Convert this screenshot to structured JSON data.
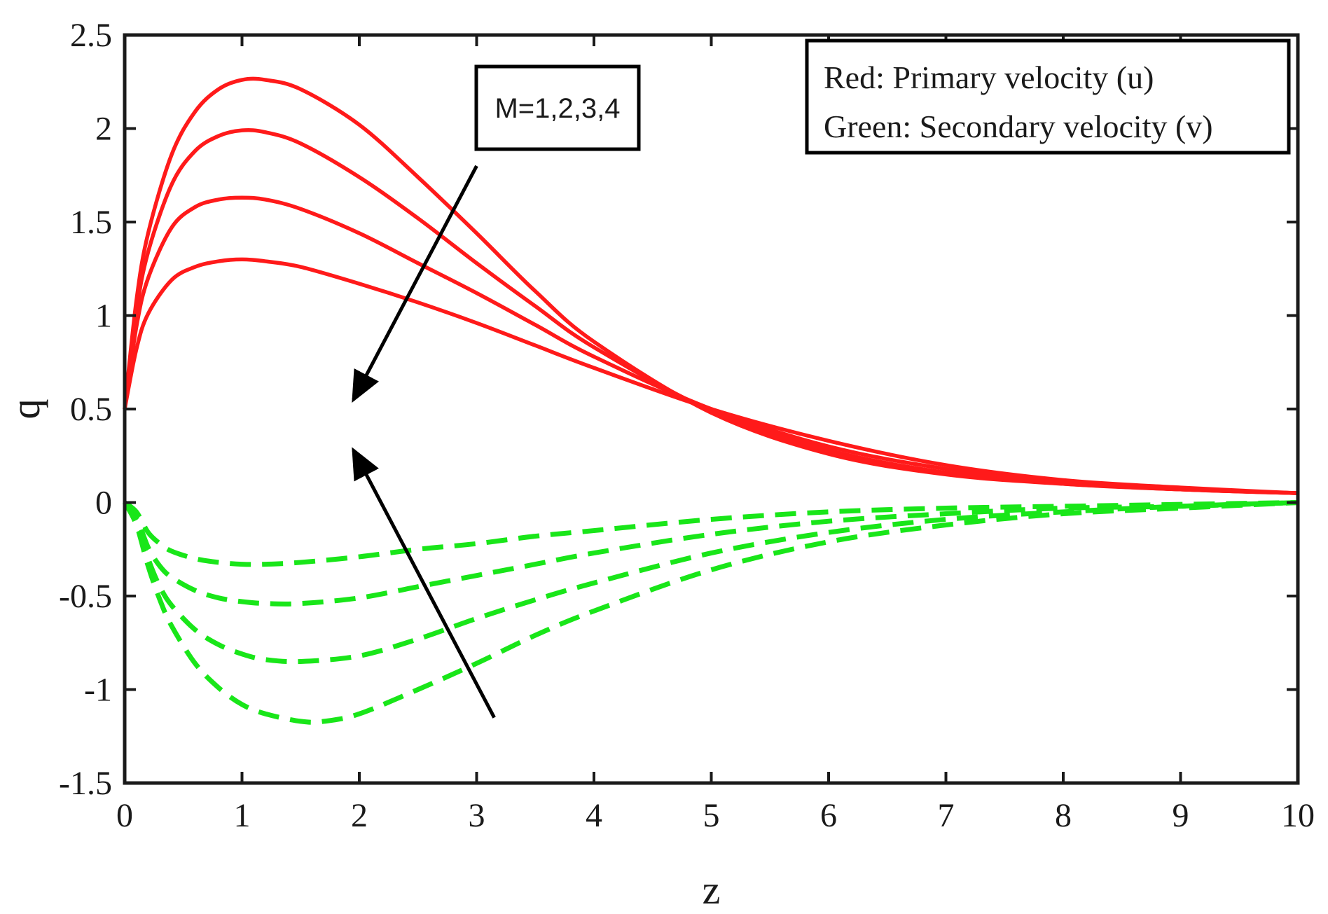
{
  "chart_data": {
    "type": "line",
    "title": "",
    "xlabel": "z",
    "ylabel": "q",
    "xlim": [
      0,
      10
    ],
    "ylim": [
      -1.5,
      2.5
    ],
    "xticks": [
      0,
      1,
      2,
      3,
      4,
      5,
      6,
      7,
      8,
      9,
      10
    ],
    "yticks": [
      -1.5,
      -1,
      -0.5,
      0,
      0.5,
      1,
      1.5,
      2,
      2.5
    ],
    "ytick_labels": [
      "-1.5",
      "-1",
      "-0.5",
      "0",
      "0.5",
      "1",
      "1.5",
      "2",
      "2.5"
    ],
    "grid": false,
    "legend_position": "top-right",
    "legend": [
      "Red: Primary velocity (u)",
      "Green: Secondary velocity (v)"
    ],
    "annotation": {
      "text": "M=1,2,3,4",
      "arrow_primary": {
        "from": [
          3.0,
          1.8
        ],
        "to": [
          1.95,
          0.55
        ]
      },
      "arrow_secondary": {
        "from": [
          3.15,
          -1.15
        ],
        "to": [
          1.95,
          0.28
        ]
      }
    },
    "series": [
      {
        "name": "u, M=1",
        "style": "solid",
        "color": "#ff1a1a",
        "x": [
          0,
          0.1,
          0.2,
          0.4,
          0.6,
          0.8,
          1.0,
          1.2,
          1.5,
          2,
          2.5,
          3,
          3.5,
          4,
          5,
          6,
          7,
          8,
          9,
          10
        ],
        "y": [
          0.5,
          1.08,
          1.44,
          1.86,
          2.09,
          2.21,
          2.26,
          2.26,
          2.21,
          2.02,
          1.74,
          1.44,
          1.13,
          0.86,
          0.48,
          0.26,
          0.15,
          0.1,
          0.07,
          0.05
        ]
      },
      {
        "name": "u, M=2",
        "style": "solid",
        "color": "#ff1a1a",
        "x": [
          0,
          0.1,
          0.2,
          0.4,
          0.6,
          0.8,
          1.0,
          1.2,
          1.5,
          2,
          2.5,
          3,
          3.5,
          4,
          5,
          6,
          7,
          8,
          9,
          10
        ],
        "y": [
          0.5,
          1.02,
          1.34,
          1.7,
          1.88,
          1.96,
          1.99,
          1.98,
          1.92,
          1.74,
          1.52,
          1.28,
          1.05,
          0.83,
          0.49,
          0.28,
          0.16,
          0.1,
          0.07,
          0.05
        ]
      },
      {
        "name": "u, M=3",
        "style": "solid",
        "color": "#ff1a1a",
        "x": [
          0,
          0.1,
          0.2,
          0.4,
          0.6,
          0.8,
          1.0,
          1.2,
          1.5,
          2,
          2.5,
          3,
          3.5,
          4,
          5,
          6,
          7,
          8,
          9,
          10
        ],
        "y": [
          0.5,
          0.94,
          1.2,
          1.47,
          1.58,
          1.62,
          1.63,
          1.62,
          1.57,
          1.44,
          1.28,
          1.12,
          0.95,
          0.78,
          0.5,
          0.3,
          0.18,
          0.11,
          0.07,
          0.05
        ]
      },
      {
        "name": "u, M=4",
        "style": "solid",
        "color": "#ff1a1a",
        "x": [
          0,
          0.1,
          0.2,
          0.4,
          0.6,
          0.8,
          1.0,
          1.2,
          1.5,
          2,
          2.5,
          3,
          3.5,
          4,
          5,
          6,
          7,
          8,
          9,
          10
        ],
        "y": [
          0.5,
          0.82,
          1.01,
          1.19,
          1.26,
          1.29,
          1.3,
          1.29,
          1.26,
          1.17,
          1.07,
          0.96,
          0.84,
          0.72,
          0.5,
          0.33,
          0.2,
          0.12,
          0.08,
          0.05
        ]
      },
      {
        "name": "v, M=1",
        "style": "dashed",
        "color": "#19e619",
        "x": [
          0,
          0.1,
          0.2,
          0.3,
          0.4,
          0.6,
          0.8,
          1.0,
          1.2,
          1.5,
          2,
          2.5,
          3,
          3.5,
          4,
          5,
          6,
          7,
          8,
          9,
          10
        ],
        "y": [
          0,
          -0.05,
          -0.16,
          -0.22,
          -0.26,
          -0.3,
          -0.32,
          -0.33,
          -0.33,
          -0.32,
          -0.29,
          -0.25,
          -0.22,
          -0.18,
          -0.15,
          -0.09,
          -0.05,
          -0.03,
          -0.02,
          -0.01,
          0
        ]
      },
      {
        "name": "v, M=2",
        "style": "dashed",
        "color": "#19e619",
        "x": [
          0,
          0.1,
          0.2,
          0.3,
          0.4,
          0.6,
          0.8,
          1.0,
          1.2,
          1.5,
          2,
          2.5,
          3,
          3.5,
          4,
          5,
          6,
          7,
          8,
          9,
          10
        ],
        "y": [
          0,
          -0.08,
          -0.24,
          -0.34,
          -0.4,
          -0.47,
          -0.51,
          -0.53,
          -0.54,
          -0.54,
          -0.51,
          -0.45,
          -0.39,
          -0.33,
          -0.27,
          -0.17,
          -0.1,
          -0.06,
          -0.03,
          -0.02,
          0
        ]
      },
      {
        "name": "v, M=3",
        "style": "dashed",
        "color": "#19e619",
        "x": [
          0,
          0.1,
          0.2,
          0.3,
          0.4,
          0.6,
          0.8,
          1.0,
          1.2,
          1.5,
          2,
          2.5,
          3,
          3.5,
          4,
          5,
          6,
          7,
          8,
          9,
          10
        ],
        "y": [
          0,
          -0.1,
          -0.3,
          -0.45,
          -0.55,
          -0.68,
          -0.76,
          -0.81,
          -0.84,
          -0.85,
          -0.82,
          -0.73,
          -0.62,
          -0.52,
          -0.43,
          -0.27,
          -0.16,
          -0.09,
          -0.05,
          -0.02,
          0
        ]
      },
      {
        "name": "v, M=4",
        "style": "dashed",
        "color": "#19e619",
        "x": [
          0,
          0.1,
          0.2,
          0.3,
          0.4,
          0.6,
          0.8,
          1.0,
          1.2,
          1.5,
          1.7,
          2,
          2.5,
          3,
          3.5,
          4,
          5,
          6,
          7,
          8,
          9,
          10
        ],
        "y": [
          0,
          -0.12,
          -0.34,
          -0.52,
          -0.66,
          -0.86,
          -0.99,
          -1.08,
          -1.13,
          -1.17,
          -1.17,
          -1.13,
          -1.0,
          -0.86,
          -0.71,
          -0.58,
          -0.36,
          -0.21,
          -0.12,
          -0.06,
          -0.03,
          0
        ]
      }
    ]
  }
}
